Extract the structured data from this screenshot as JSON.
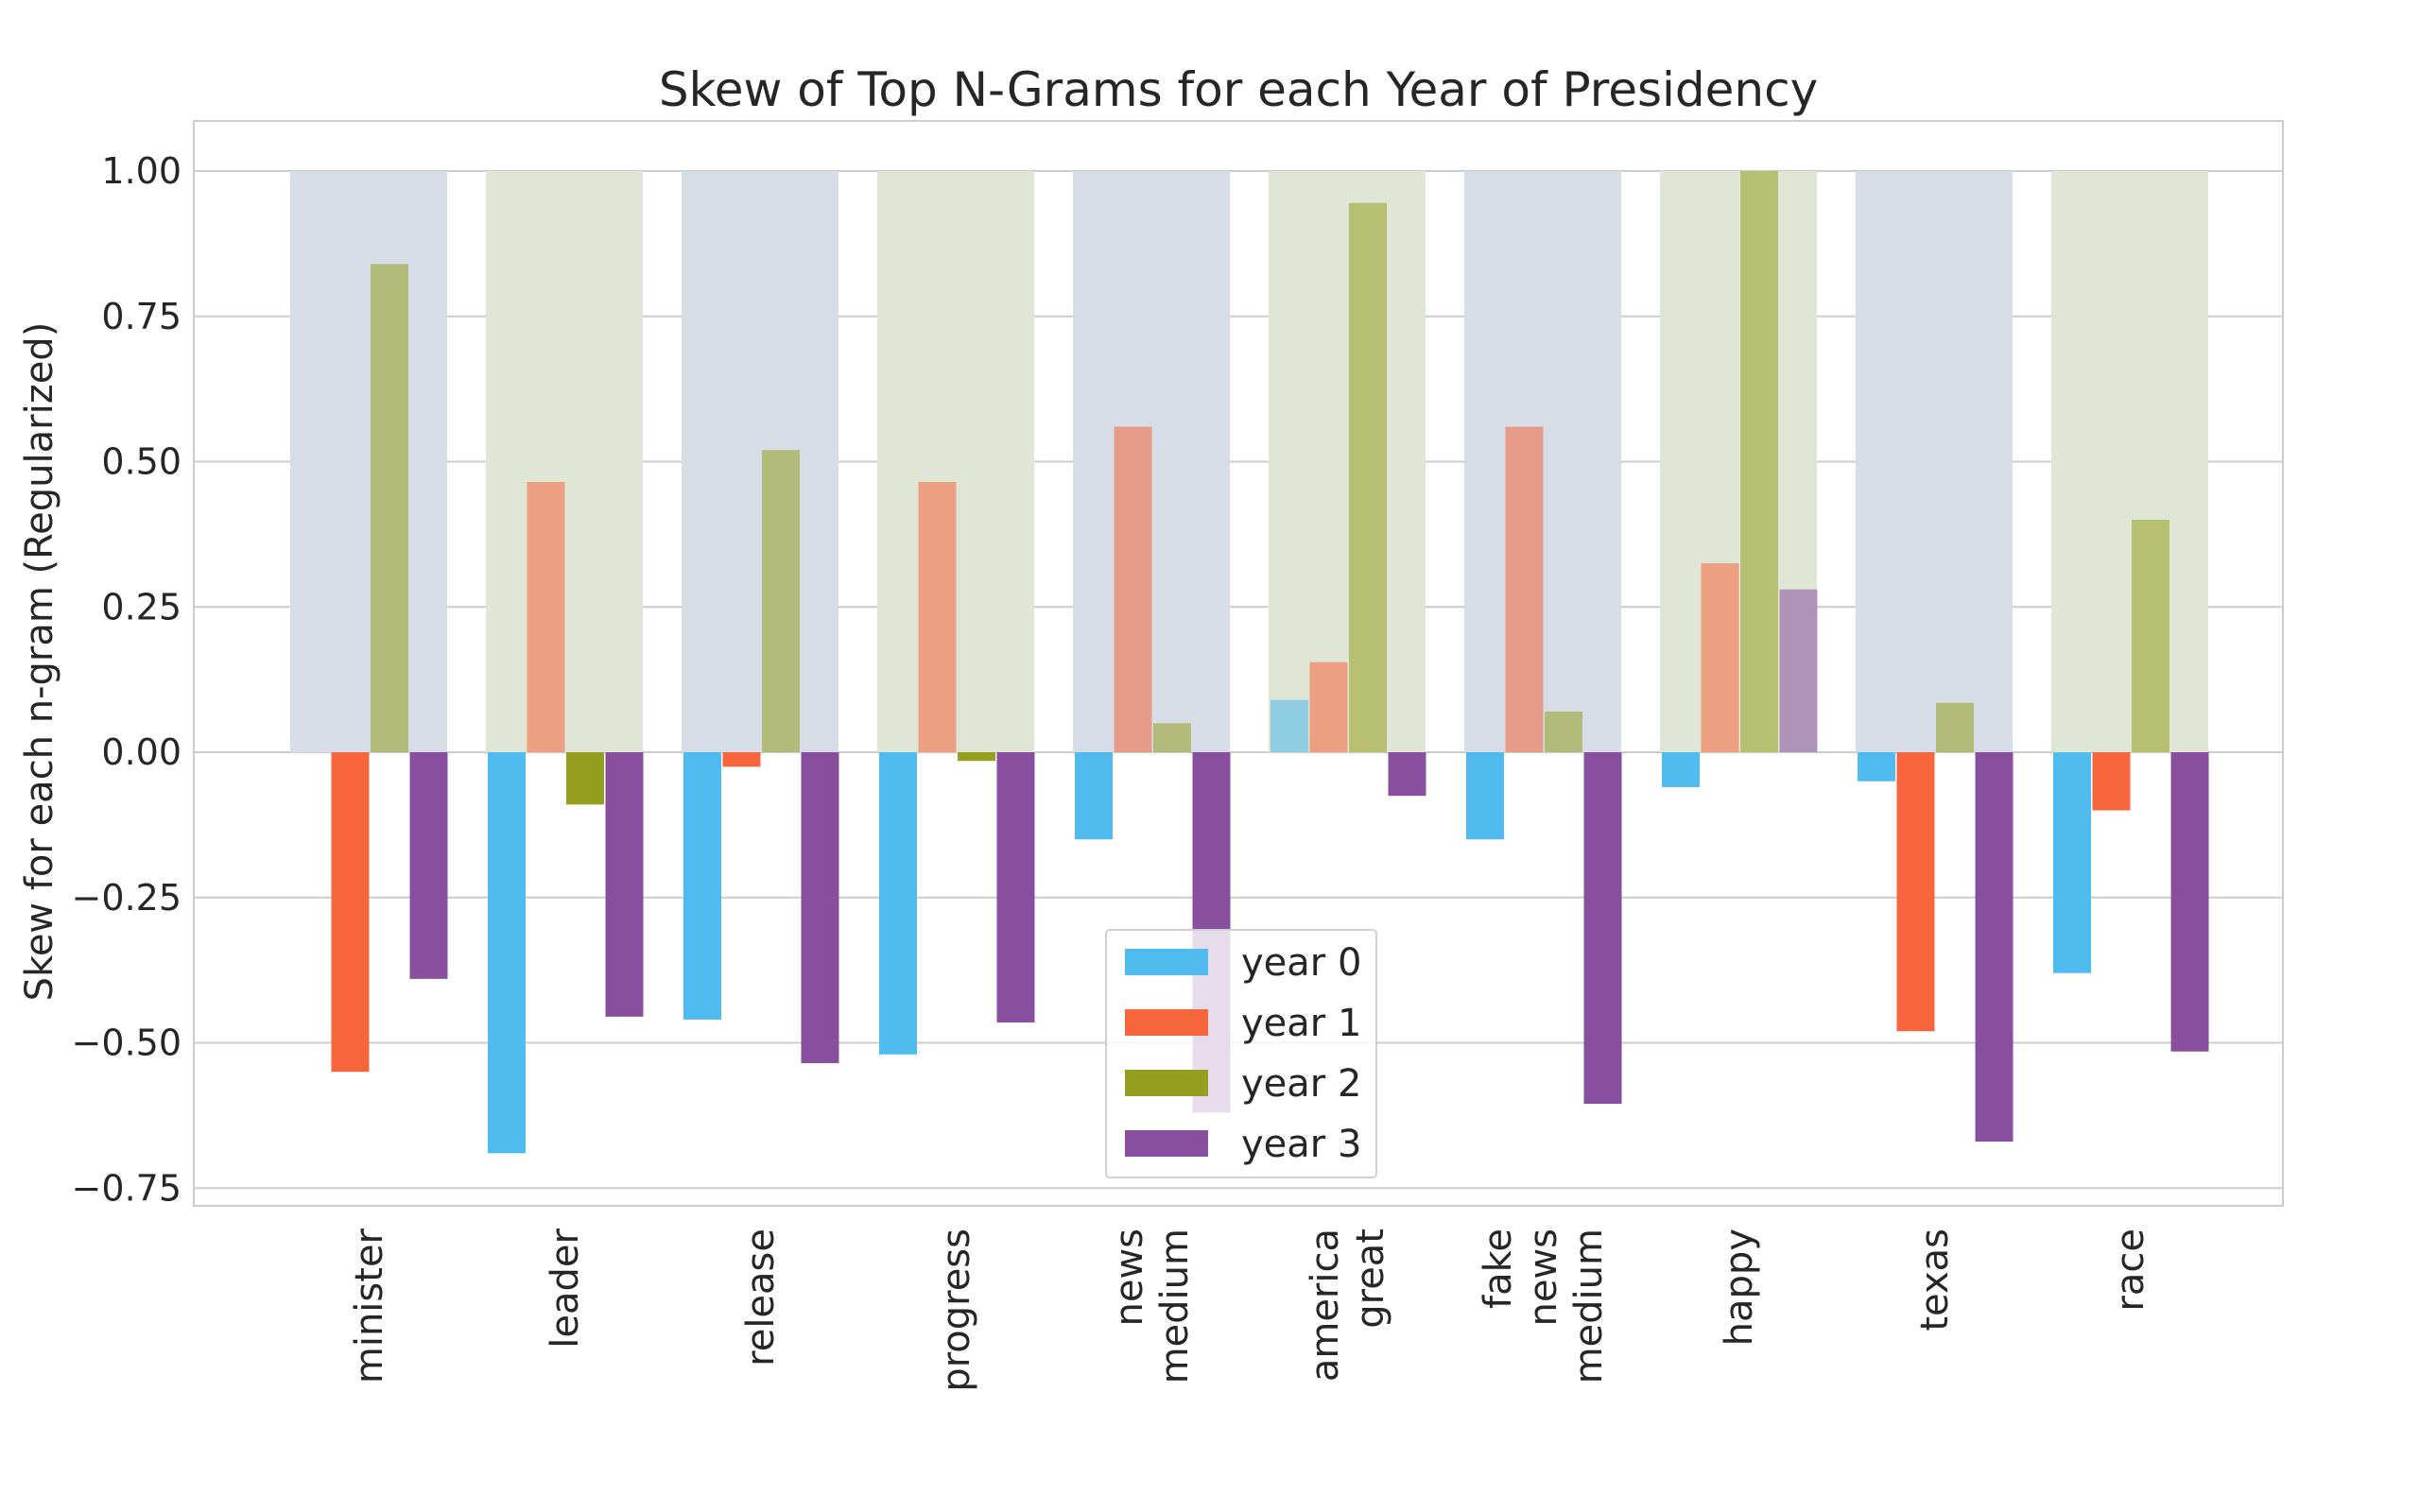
{
  "chart_data": {
    "type": "bar",
    "title": "Skew of Top N-Grams for each Year of Presidency",
    "xlabel": "",
    "ylabel": "Skew for each n-gram (Regularized)",
    "ylim": [
      -0.78,
      1.09
    ],
    "yticks": [
      "1.00",
      "0.75",
      "0.50",
      "0.25",
      "0.00",
      "−0.25",
      "−0.50",
      "−0.75"
    ],
    "ytick_values": [
      1.0,
      0.75,
      0.5,
      0.25,
      0.0,
      -0.25,
      -0.5,
      -0.75
    ],
    "grid": true,
    "legend_position": "bottom-center",
    "categories": [
      [
        "minister"
      ],
      [
        "leader"
      ],
      [
        "release"
      ],
      [
        "progress"
      ],
      [
        "news",
        "medium"
      ],
      [
        "america",
        "great"
      ],
      [
        "fake",
        "news",
        "medium"
      ],
      [
        "happy"
      ],
      [
        "texas"
      ],
      [
        "race"
      ]
    ],
    "background_bands": {
      "value": 1.0,
      "colors": [
        "#d6dde7",
        "#dfe6d6"
      ]
    },
    "series": [
      {
        "name": "year 0",
        "color": "#4fbbee",
        "values": [
          0.0,
          -0.69,
          -0.46,
          -0.52,
          -0.15,
          0.09,
          -0.15,
          -0.06,
          -0.05,
          -0.38
        ]
      },
      {
        "name": "year 1",
        "color": "#f6653c",
        "values": [
          -0.55,
          0.465,
          -0.025,
          0.465,
          0.56,
          0.155,
          0.56,
          0.325,
          -0.48,
          -0.1
        ]
      },
      {
        "name": "year 2",
        "color": "#969e1f",
        "values": [
          0.84,
          -0.09,
          0.52,
          -0.015,
          0.05,
          0.945,
          0.07,
          1.0,
          0.085,
          0.4
        ]
      },
      {
        "name": "year 3",
        "color": "#874f9d",
        "values": [
          -0.39,
          -0.455,
          -0.535,
          -0.465,
          -0.62,
          -0.075,
          -0.605,
          0.28,
          -0.67,
          -0.515
        ]
      }
    ]
  }
}
